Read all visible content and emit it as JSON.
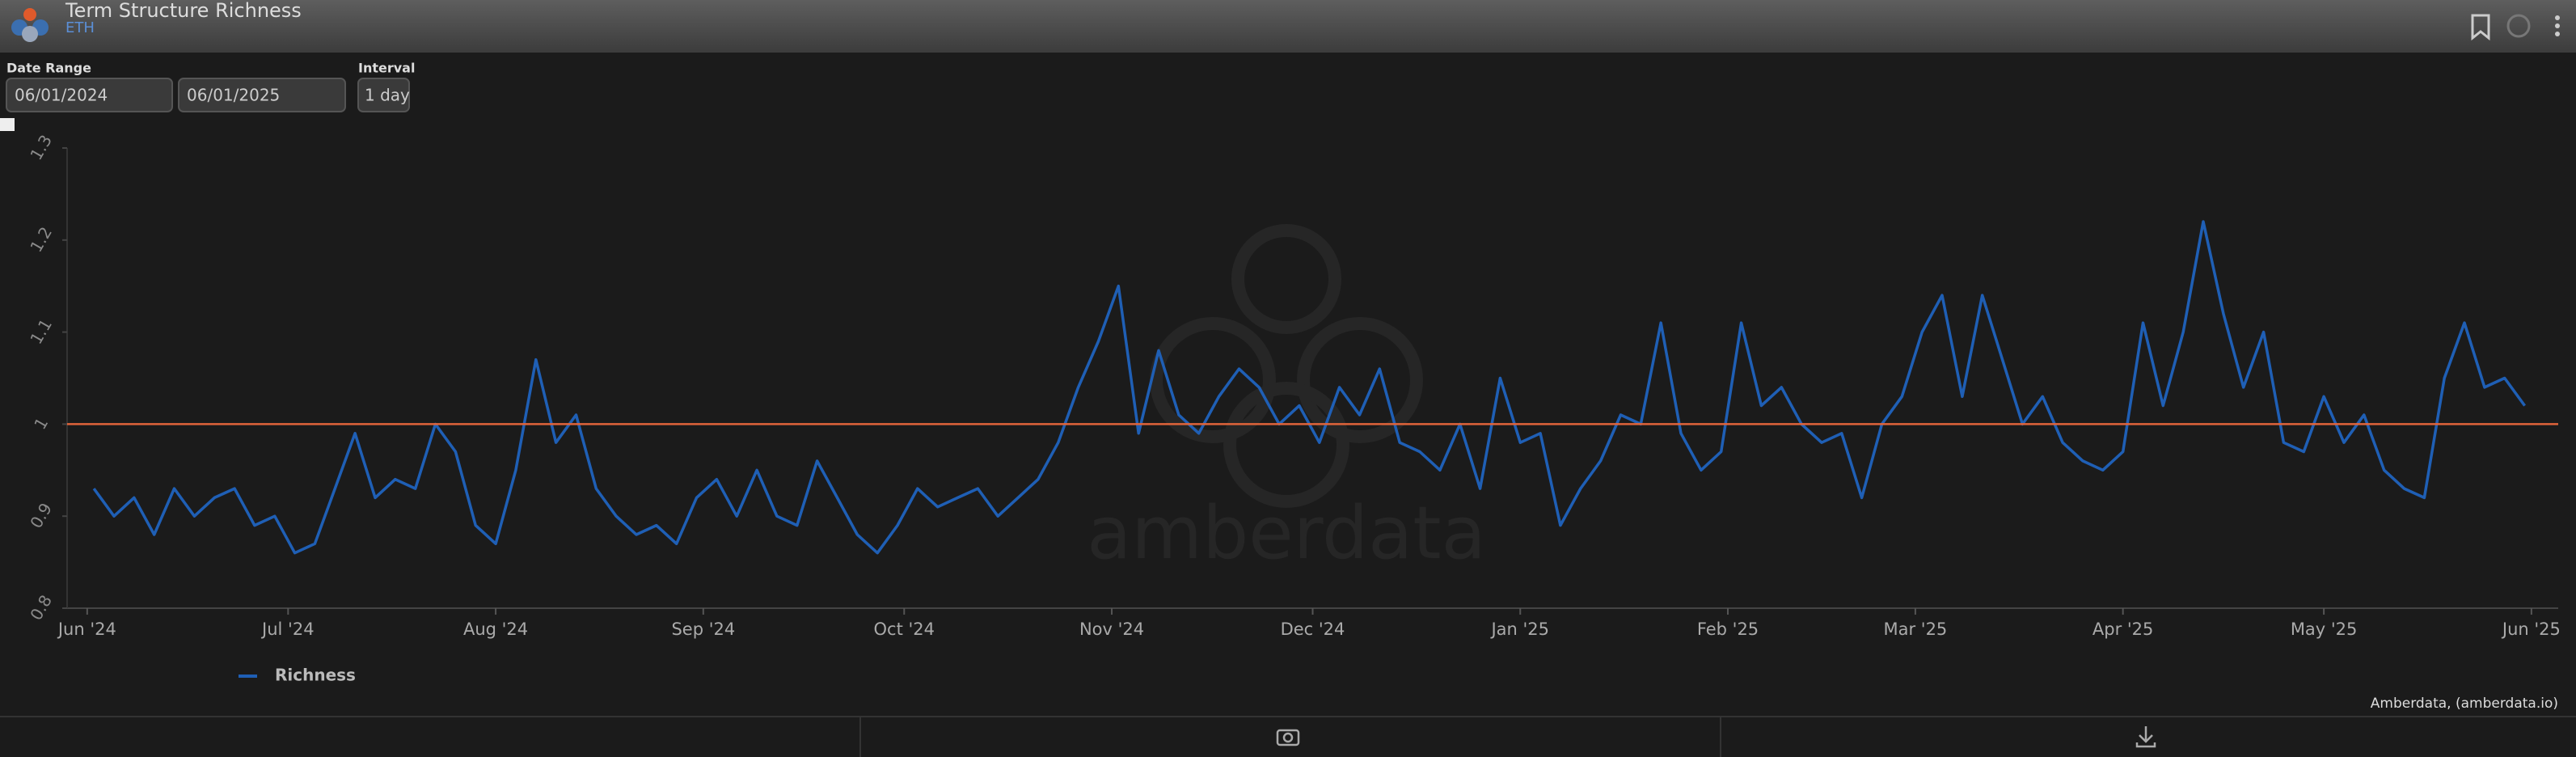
{
  "header": {
    "title": "Term Structure Richness",
    "subtitle": "ETH"
  },
  "controls": {
    "date_range_label": "Date Range",
    "start": "06/01/2024",
    "end": "06/01/2025",
    "interval_label": "Interval",
    "interval": "1 day"
  },
  "chart_data": {
    "type": "line",
    "x": [
      "2024-06-02",
      "2024-06-05",
      "2024-06-08",
      "2024-06-11",
      "2024-06-14",
      "2024-06-17",
      "2024-06-20",
      "2024-06-23",
      "2024-06-26",
      "2024-06-29",
      "2024-07-02",
      "2024-07-05",
      "2024-07-08",
      "2024-07-11",
      "2024-07-14",
      "2024-07-17",
      "2024-07-20",
      "2024-07-23",
      "2024-07-26",
      "2024-07-29",
      "2024-08-01",
      "2024-08-04",
      "2024-08-07",
      "2024-08-10",
      "2024-08-13",
      "2024-08-16",
      "2024-08-19",
      "2024-08-22",
      "2024-08-25",
      "2024-08-28",
      "2024-08-31",
      "2024-09-03",
      "2024-09-06",
      "2024-09-09",
      "2024-09-12",
      "2024-09-15",
      "2024-09-18",
      "2024-09-21",
      "2024-09-24",
      "2024-09-27",
      "2024-09-30",
      "2024-10-03",
      "2024-10-06",
      "2024-10-09",
      "2024-10-12",
      "2024-10-15",
      "2024-10-18",
      "2024-10-21",
      "2024-10-24",
      "2024-10-27",
      "2024-10-30",
      "2024-11-02",
      "2024-11-05",
      "2024-11-08",
      "2024-11-11",
      "2024-11-14",
      "2024-11-17",
      "2024-11-20",
      "2024-11-23",
      "2024-11-26",
      "2024-11-29",
      "2024-12-02",
      "2024-12-05",
      "2024-12-08",
      "2024-12-11",
      "2024-12-14",
      "2024-12-17",
      "2024-12-20",
      "2024-12-23",
      "2024-12-26",
      "2024-12-29",
      "2025-01-01",
      "2025-01-04",
      "2025-01-07",
      "2025-01-10",
      "2025-01-13",
      "2025-01-16",
      "2025-01-19",
      "2025-01-22",
      "2025-01-25",
      "2025-01-28",
      "2025-01-31",
      "2025-02-03",
      "2025-02-06",
      "2025-02-09",
      "2025-02-12",
      "2025-02-15",
      "2025-02-18",
      "2025-02-21",
      "2025-02-24",
      "2025-02-27",
      "2025-03-02",
      "2025-03-05",
      "2025-03-08",
      "2025-03-11",
      "2025-03-14",
      "2025-03-17",
      "2025-03-20",
      "2025-03-23",
      "2025-03-26",
      "2025-03-29",
      "2025-04-01",
      "2025-04-04",
      "2025-04-07",
      "2025-04-10",
      "2025-04-13",
      "2025-04-16",
      "2025-04-19",
      "2025-04-22",
      "2025-04-25",
      "2025-04-28",
      "2025-05-01",
      "2025-05-04",
      "2025-05-07",
      "2025-05-10",
      "2025-05-13",
      "2025-05-16",
      "2025-05-19",
      "2025-05-22",
      "2025-05-25",
      "2025-05-28",
      "2025-05-31"
    ],
    "series": [
      {
        "name": "Richness",
        "color": "#1f5fb5",
        "values": [
          0.93,
          0.9,
          0.92,
          0.88,
          0.93,
          0.9,
          0.92,
          0.93,
          0.89,
          0.9,
          0.86,
          0.87,
          0.93,
          0.99,
          0.92,
          0.94,
          0.93,
          1.0,
          0.97,
          0.89,
          0.87,
          0.95,
          1.07,
          0.98,
          1.01,
          0.93,
          0.9,
          0.88,
          0.89,
          0.87,
          0.92,
          0.94,
          0.9,
          0.95,
          0.9,
          0.89,
          0.96,
          0.92,
          0.88,
          0.86,
          0.89,
          0.93,
          0.91,
          0.92,
          0.93,
          0.9,
          0.92,
          0.94,
          0.98,
          1.04,
          1.09,
          1.15,
          0.99,
          1.08,
          1.01,
          0.99,
          1.03,
          1.06,
          1.04,
          1.0,
          1.02,
          0.98,
          1.04,
          1.01,
          1.06,
          0.98,
          0.97,
          0.95,
          1.0,
          0.93,
          1.05,
          0.98,
          0.99,
          0.89,
          0.93,
          0.96,
          1.01,
          1.0,
          1.11,
          0.99,
          0.95,
          0.97,
          1.11,
          1.02,
          1.04,
          1.0,
          0.98,
          0.99,
          0.92,
          1.0,
          1.03,
          1.1,
          1.14,
          1.03,
          1.14,
          1.07,
          1.0,
          1.03,
          0.98,
          0.96,
          0.95,
          0.97,
          1.11,
          1.02,
          1.1,
          1.22,
          1.12,
          1.04,
          1.1,
          0.98,
          0.97,
          1.03,
          0.98,
          1.01,
          0.95,
          0.93,
          0.92,
          1.05,
          1.11,
          1.04,
          1.05,
          1.02
        ]
      }
    ],
    "reference_line": {
      "value": 1,
      "color": "#e0643a"
    },
    "xlim": [
      "2024-05-29",
      "2025-06-05"
    ],
    "xticks": [
      {
        "value": "2024-06-01",
        "label": "Jun '24"
      },
      {
        "value": "2024-07-01",
        "label": "Jul '24"
      },
      {
        "value": "2024-08-01",
        "label": "Aug '24"
      },
      {
        "value": "2024-09-01",
        "label": "Sep '24"
      },
      {
        "value": "2024-10-01",
        "label": "Oct '24"
      },
      {
        "value": "2024-11-01",
        "label": "Nov '24"
      },
      {
        "value": "2024-12-01",
        "label": "Dec '24"
      },
      {
        "value": "2025-01-01",
        "label": "Jan '25"
      },
      {
        "value": "2025-02-01",
        "label": "Feb '25"
      },
      {
        "value": "2025-03-01",
        "label": "Mar '25"
      },
      {
        "value": "2025-04-01",
        "label": "Apr '25"
      },
      {
        "value": "2025-05-01",
        "label": "May '25"
      },
      {
        "value": "2025-06-01",
        "label": "Jun '25"
      }
    ],
    "ylim": [
      0.8,
      1.3
    ],
    "yticks": [
      0.8,
      0.9,
      1,
      1.1,
      1.2,
      1.3
    ],
    "watermark": "amberdata",
    "credit": "Amberdata, (amberdata.io)"
  }
}
